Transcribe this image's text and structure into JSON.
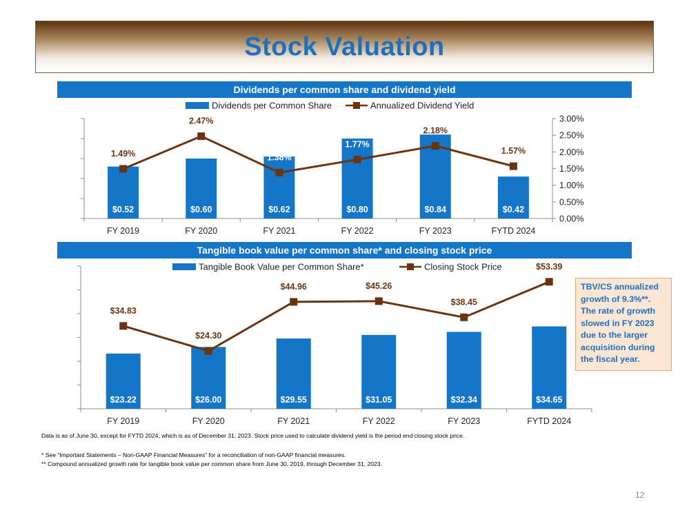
{
  "slide": {
    "title": "Stock Valuation",
    "page_number": "12"
  },
  "colors": {
    "bar": "#1576c8",
    "line": "#6b3410",
    "label_brown": "#6b3410",
    "header_blue": "#1576c8",
    "title_blue": "#1f6fc0"
  },
  "chart_data": [
    {
      "type": "bar",
      "title": "Dividends per common share and dividend yield",
      "categories": [
        "FY 2019",
        "FY 2020",
        "FY 2021",
        "FY 2022",
        "FY 2023",
        "FYTD 2024"
      ],
      "series": [
        {
          "name": "Dividends per Common Share",
          "kind": "bar",
          "axis": "left",
          "values": [
            0.52,
            0.6,
            0.62,
            0.8,
            0.84,
            0.42
          ],
          "labels": [
            "$0.52",
            "$0.60",
            "$0.62",
            "$0.80",
            "$0.84",
            "$0.42"
          ]
        },
        {
          "name": "Annualized Dividend Yield",
          "kind": "line",
          "axis": "right",
          "values": [
            1.49,
            2.47,
            1.38,
            1.77,
            2.18,
            1.57
          ],
          "labels": [
            "1.49%",
            "2.47%",
            "1.38%",
            "1.77%",
            "2.18%",
            "1.57%"
          ]
        }
      ],
      "left_axis": {
        "ylim": [
          0,
          1.0
        ],
        "tick_count": 6,
        "show_labels": false
      },
      "right_axis": {
        "ylim": [
          0,
          3.0
        ],
        "ticks": [
          "0.00%",
          "0.50%",
          "1.00%",
          "1.50%",
          "2.00%",
          "2.50%",
          "3.00%"
        ]
      },
      "legend": "top-center"
    },
    {
      "type": "bar",
      "title": "Tangible book value per common share* and closing stock price",
      "categories": [
        "FY 2019",
        "FY 2020",
        "FY 2021",
        "FY 2022",
        "FY 2023",
        "FYTD 2024"
      ],
      "series": [
        {
          "name": "Tangible Book Value per Common Share*",
          "kind": "bar",
          "axis": "left",
          "values": [
            23.22,
            26.0,
            29.55,
            31.05,
            32.34,
            34.65
          ],
          "labels": [
            "$23.22",
            "$26.00",
            "$29.55",
            "$31.05",
            "$32.34",
            "$34.65"
          ]
        },
        {
          "name": "Closing Stock Price",
          "kind": "line",
          "axis": "right",
          "values": [
            34.83,
            24.3,
            44.96,
            45.26,
            38.45,
            53.39
          ],
          "labels": [
            "$34.83",
            "$24.30",
            "$44.96",
            "$45.26",
            "$38.45",
            "$53.39"
          ]
        }
      ],
      "left_axis": {
        "ylim": [
          0,
          60
        ],
        "tick_count": 7,
        "show_labels": false
      },
      "right_axis": {
        "ylim": [
          0,
          60
        ],
        "show_labels": false
      },
      "legend": "top-center"
    }
  ],
  "callout": {
    "text": "TBV/CS annualized growth of 9.3%**. The rate of growth slowed in FY 2023 due to the larger acquisition during the fiscal year."
  },
  "footnotes": {
    "data_note": "Data is as of June 30, except for FYTD 2024, which is as of December 31, 2023. Stock price used to calculate dividend yield is the period end closing stock price.",
    "note_1": "*  See “Important Statements – Non-GAAP Financial Measures” for a reconciliation of non-GAAP financial measures.",
    "note_2": "** Compound annualized growth rate for tangible book value per common share from June 30, 2019, through December 31, 2023."
  }
}
